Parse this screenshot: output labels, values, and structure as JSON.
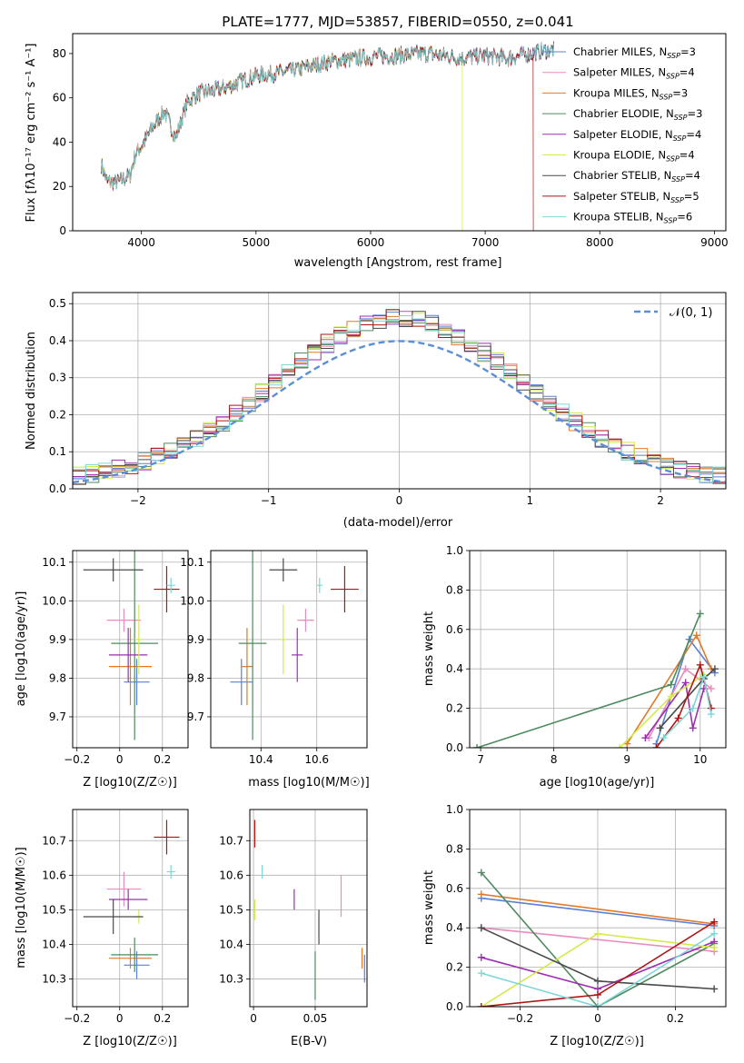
{
  "colors": {
    "chabrier_miles": "#5b7fd6",
    "salpeter_miles": "#e88bbd",
    "kroupa_miles": "#e07a2a",
    "chabrier_elodie": "#4e8a5f",
    "salpeter_elodie": "#9a2fb0",
    "kroupa_elodie": "#d6e84a",
    "chabrier_stelib": "#4a4a4a",
    "salpeter_stelib": "#b01515",
    "kroupa_stelib": "#7fd6d6"
  },
  "chart_data": [
    {
      "id": "spectrum",
      "type": "line",
      "title": "PLATE=1777, MJD=53857, FIBERID=0550, z=0.041",
      "xlabel": "wavelength [Angstrom, rest frame]",
      "ylabel": "Flux [fλ10⁻¹⁷ erg cm⁻² s⁻¹ A⁻¹]",
      "xlim": [
        3400,
        9100
      ],
      "ylim": [
        0,
        89
      ],
      "xticks": [
        4000,
        5000,
        6000,
        7000,
        8000,
        9000
      ],
      "yticks": [
        0,
        20,
        40,
        60,
        80
      ],
      "continuum": {
        "x": [
          3650,
          3700,
          3800,
          3900,
          3950,
          4000,
          4100,
          4200,
          4300,
          4400,
          4500,
          4700,
          5000,
          5300,
          5600,
          5900,
          6200,
          6500,
          6800,
          7000,
          7200,
          7400,
          7600
        ],
        "y": [
          30,
          22,
          22,
          25,
          35,
          38,
          47,
          54,
          42,
          58,
          62,
          64,
          70,
          72,
          76,
          78,
          79,
          80,
          78,
          79,
          78,
          80,
          82
        ]
      },
      "series": [
        {
          "name": "Chabrier MILES, N_SSP=3",
          "ssp": "3",
          "x_end": 7600
        },
        {
          "name": "Salpeter MILES, N_SSP=4",
          "ssp": "4",
          "x_end": 7600
        },
        {
          "name": "Kroupa MILES, N_SSP=3",
          "ssp": "3",
          "x_end": 7600
        },
        {
          "name": "Chabrier ELODIE, N_SSP=3",
          "ssp": "3",
          "x_end": 7600
        },
        {
          "name": "Salpeter ELODIE, N_SSP=4",
          "ssp": "4",
          "x_end": 7600
        },
        {
          "name": "Kroupa ELODIE, N_SSP=4",
          "ssp": "4",
          "x_end": 6800
        },
        {
          "name": "Chabrier STELIB, N_SSP=4",
          "ssp": "4",
          "x_end": 7600
        },
        {
          "name": "Salpeter STELIB, N_SSP=5",
          "ssp": "5",
          "x_end": 7420
        },
        {
          "name": "Kroupa STELIB, N_SSP=6",
          "ssp": "6",
          "x_end": 7600
        }
      ],
      "legend": "upper right"
    },
    {
      "id": "residuals",
      "type": "line",
      "xlabel": "(data-model)/error",
      "ylabel": "Normed distribution",
      "xlim": [
        -2.5,
        2.5
      ],
      "ylim": [
        0,
        0.53
      ],
      "xticks": [
        -2,
        -1,
        0,
        1,
        2
      ],
      "yticks": [
        0.0,
        0.1,
        0.2,
        0.3,
        0.4,
        0.5
      ],
      "gaussian_label": "𝒩(0, 1)",
      "legend": "upper right",
      "grid": true
    },
    {
      "id": "age_vs_Z",
      "type": "scatter",
      "xlabel": "Z [log10(Z/Z☉)]",
      "ylabel": "age [log10(age/yr)]",
      "xlim": [
        -0.22,
        0.32
      ],
      "ylim": [
        9.62,
        10.13
      ],
      "xticks": [
        -0.2,
        0.0,
        0.2
      ],
      "yticks": [
        9.7,
        9.8,
        9.9,
        10.0,
        10.1
      ],
      "points": [
        {
          "model": "chabrier_miles",
          "x": 0.08,
          "y": 9.79,
          "xerr": 0.06,
          "yerr": 0.06
        },
        {
          "model": "salpeter_miles",
          "x": 0.02,
          "y": 9.95,
          "xerr": 0.08,
          "yerr": 0.03
        },
        {
          "model": "kroupa_miles",
          "x": 0.05,
          "y": 9.83,
          "xerr": 0.1,
          "yerr": 0.1
        },
        {
          "model": "chabrier_elodie",
          "x": 0.07,
          "y": 9.89,
          "xerr": 0.11,
          "yerr": 0.25
        },
        {
          "model": "salpeter_elodie",
          "x": 0.04,
          "y": 9.86,
          "xerr": 0.09,
          "yerr": 0.07
        },
        {
          "model": "kroupa_elodie",
          "x": 0.09,
          "y": 9.9,
          "xerr": 0.02,
          "yerr": 0.09
        },
        {
          "model": "chabrier_stelib",
          "x": -0.03,
          "y": 10.08,
          "xerr": 0.14,
          "yerr": 0.03
        },
        {
          "model": "salpeter_stelib",
          "x": 0.22,
          "y": 10.03,
          "xerr": 0.06,
          "yerr": 0.06
        },
        {
          "model": "kroupa_stelib",
          "x": 0.24,
          "y": 10.04,
          "xerr": 0.02,
          "yerr": 0.02
        }
      ],
      "grid": true
    },
    {
      "id": "age_vs_mass",
      "type": "scatter",
      "xlabel": "mass [log10(M/M☉)]",
      "ylabel": "",
      "xlim": [
        10.22,
        10.78
      ],
      "ylim": [
        9.62,
        10.13
      ],
      "xticks": [
        10.4,
        10.6
      ],
      "yticks": [
        9.7,
        9.8,
        9.9,
        10.0,
        10.1
      ],
      "points": [
        {
          "model": "chabrier_miles",
          "x": 10.33,
          "y": 9.79,
          "xerr": 0.04,
          "yerr": 0.06
        },
        {
          "model": "salpeter_miles",
          "x": 10.56,
          "y": 9.95,
          "xerr": 0.03,
          "yerr": 0.03
        },
        {
          "model": "kroupa_miles",
          "x": 10.35,
          "y": 9.83,
          "xerr": 0.02,
          "yerr": 0.1
        },
        {
          "model": "chabrier_elodie",
          "x": 10.37,
          "y": 9.89,
          "xerr": 0.05,
          "yerr": 0.25
        },
        {
          "model": "salpeter_elodie",
          "x": 10.53,
          "y": 9.86,
          "xerr": 0.02,
          "yerr": 0.07
        },
        {
          "model": "kroupa_elodie",
          "x": 10.48,
          "y": 9.9,
          "xerr": 0.01,
          "yerr": 0.09
        },
        {
          "model": "chabrier_stelib",
          "x": 10.48,
          "y": 10.08,
          "xerr": 0.05,
          "yerr": 0.03
        },
        {
          "model": "salpeter_stelib",
          "x": 10.7,
          "y": 10.03,
          "xerr": 0.05,
          "yerr": 0.06
        },
        {
          "model": "kroupa_stelib",
          "x": 10.61,
          "y": 10.04,
          "xerr": 0.01,
          "yerr": 0.02
        }
      ],
      "grid": true
    },
    {
      "id": "massweight_vs_age",
      "type": "line",
      "xlabel": "age [log10(age/yr)]",
      "ylabel": "mass weight",
      "xlim": [
        6.85,
        10.35
      ],
      "ylim": [
        0,
        1.0
      ],
      "xticks": [
        7,
        8,
        9,
        10
      ],
      "yticks": [
        0.0,
        0.2,
        0.4,
        0.6,
        0.8,
        1.0
      ],
      "series": [
        {
          "model": "chabrier_miles",
          "x": [
            9.4,
            9.85,
            10.2
          ],
          "y": [
            0.02,
            0.55,
            0.38
          ]
        },
        {
          "model": "salpeter_miles",
          "x": [
            9.3,
            9.8,
            10.15
          ],
          "y": [
            0.05,
            0.4,
            0.3
          ]
        },
        {
          "model": "kroupa_miles",
          "x": [
            9.0,
            9.95,
            10.15
          ],
          "y": [
            0.02,
            0.57,
            0.4
          ]
        },
        {
          "model": "chabrier_elodie",
          "x": [
            6.95,
            9.6,
            10.0
          ],
          "y": [
            0.0,
            0.32,
            0.68
          ]
        },
        {
          "model": "salpeter_elodie",
          "x": [
            9.25,
            9.8,
            9.9,
            10.05
          ],
          "y": [
            0.05,
            0.33,
            0.1,
            0.3
          ]
        },
        {
          "model": "kroupa_elodie",
          "x": [
            8.9,
            9.6,
            10.05
          ],
          "y": [
            0.0,
            0.26,
            0.37
          ]
        },
        {
          "model": "chabrier_stelib",
          "x": [
            9.45,
            10.05,
            10.2
          ],
          "y": [
            0.1,
            0.35,
            0.4
          ]
        },
        {
          "model": "salpeter_stelib",
          "x": [
            9.4,
            9.7,
            10.0,
            10.15
          ],
          "y": [
            0.0,
            0.15,
            0.42,
            0.2
          ]
        },
        {
          "model": "kroupa_stelib",
          "x": [
            9.5,
            9.9,
            10.05,
            10.15
          ],
          "y": [
            0.05,
            0.2,
            0.36,
            0.17
          ]
        }
      ],
      "grid": true
    },
    {
      "id": "mass_vs_Z",
      "type": "scatter",
      "xlabel": "Z [log10(Z/Z☉)]",
      "ylabel": "mass [log10(M/M☉)]",
      "xlim": [
        -0.22,
        0.32
      ],
      "ylim": [
        10.22,
        10.79
      ],
      "xticks": [
        -0.2,
        0.0,
        0.2
      ],
      "yticks": [
        10.3,
        10.4,
        10.5,
        10.6,
        10.7
      ],
      "points": [
        {
          "model": "chabrier_miles",
          "x": 0.08,
          "y": 10.34,
          "xerr": 0.06,
          "yerr": 0.04
        },
        {
          "model": "salpeter_miles",
          "x": 0.02,
          "y": 10.56,
          "xerr": 0.08,
          "yerr": 0.05
        },
        {
          "model": "kroupa_miles",
          "x": 0.05,
          "y": 10.36,
          "xerr": 0.1,
          "yerr": 0.03
        },
        {
          "model": "chabrier_elodie",
          "x": 0.07,
          "y": 10.37,
          "xerr": 0.11,
          "yerr": 0.05
        },
        {
          "model": "salpeter_elodie",
          "x": 0.04,
          "y": 10.53,
          "xerr": 0.09,
          "yerr": 0.03
        },
        {
          "model": "kroupa_elodie",
          "x": 0.09,
          "y": 10.48,
          "xerr": 0.02,
          "yerr": 0.02
        },
        {
          "model": "chabrier_stelib",
          "x": -0.03,
          "y": 10.48,
          "xerr": 0.14,
          "yerr": 0.05
        },
        {
          "model": "salpeter_stelib",
          "x": 0.22,
          "y": 10.71,
          "xerr": 0.06,
          "yerr": 0.05
        },
        {
          "model": "kroupa_stelib",
          "x": 0.24,
          "y": 10.61,
          "xerr": 0.02,
          "yerr": 0.02
        }
      ],
      "grid": true
    },
    {
      "id": "mass_vs_ebv",
      "type": "scatter",
      "xlabel": "E(B-V)",
      "ylabel": "",
      "xlim": [
        -0.003,
        0.092
      ],
      "ylim": [
        10.22,
        10.79
      ],
      "xticks": [
        0.0,
        0.05
      ],
      "yticks": [
        10.3,
        10.4,
        10.5,
        10.6,
        10.7
      ],
      "points": [
        {
          "model": "chabrier_miles",
          "x": 0.09,
          "y": 10.33,
          "xerr": 0.0,
          "yerr": 0.04
        },
        {
          "model": "salpeter_miles",
          "x": 0.071,
          "y": 10.54,
          "xerr": 0.0,
          "yerr": 0.06
        },
        {
          "model": "kroupa_miles",
          "x": 0.088,
          "y": 10.36,
          "xerr": 0.0,
          "yerr": 0.03
        },
        {
          "model": "chabrier_elodie",
          "x": 0.05,
          "y": 10.31,
          "xerr": 0.0,
          "yerr": 0.07
        },
        {
          "model": "salpeter_elodie",
          "x": 0.033,
          "y": 10.53,
          "xerr": 0.0,
          "yerr": 0.03
        },
        {
          "model": "kroupa_elodie",
          "x": 0.001,
          "y": 10.5,
          "xerr": 0.0,
          "yerr": 0.03
        },
        {
          "model": "chabrier_stelib",
          "x": 0.053,
          "y": 10.45,
          "xerr": 0.0,
          "yerr": 0.05
        },
        {
          "model": "salpeter_stelib",
          "x": 0.001,
          "y": 10.72,
          "xerr": 0.0,
          "yerr": 0.04
        },
        {
          "model": "kroupa_stelib",
          "x": 0.007,
          "y": 10.61,
          "xerr": 0.0,
          "yerr": 0.02
        }
      ],
      "grid": true
    },
    {
      "id": "massweight_vs_Z",
      "type": "line",
      "xlabel": "Z [log10(Z/Z☉)]",
      "ylabel": "mass weight",
      "xlim": [
        -0.33,
        0.33
      ],
      "ylim": [
        0,
        1.0
      ],
      "xticks": [
        -0.2,
        0.0,
        0.2
      ],
      "yticks": [
        0.0,
        0.2,
        0.4,
        0.6,
        0.8,
        1.0
      ],
      "series": [
        {
          "model": "chabrier_miles",
          "x": [
            -0.3,
            0.3
          ],
          "y": [
            0.55,
            0.41
          ]
        },
        {
          "model": "salpeter_miles",
          "x": [
            -0.3,
            0.3
          ],
          "y": [
            0.4,
            0.28
          ]
        },
        {
          "model": "kroupa_miles",
          "x": [
            -0.3,
            0.3
          ],
          "y": [
            0.57,
            0.42
          ]
        },
        {
          "model": "chabrier_elodie",
          "x": [
            -0.3,
            0.0,
            0.3
          ],
          "y": [
            0.68,
            0.0,
            0.32
          ]
        },
        {
          "model": "salpeter_elodie",
          "x": [
            -0.3,
            0.0,
            0.3
          ],
          "y": [
            0.25,
            0.09,
            0.33
          ]
        },
        {
          "model": "kroupa_elodie",
          "x": [
            -0.3,
            0.0,
            0.3
          ],
          "y": [
            0.0,
            0.37,
            0.3
          ]
        },
        {
          "model": "chabrier_stelib",
          "x": [
            -0.3,
            0.0,
            0.3
          ],
          "y": [
            0.4,
            0.13,
            0.09
          ]
        },
        {
          "model": "salpeter_stelib",
          "x": [
            -0.3,
            0.0,
            0.3
          ],
          "y": [
            0.0,
            0.06,
            0.43
          ]
        },
        {
          "model": "kroupa_stelib",
          "x": [
            -0.3,
            0.0,
            0.3
          ],
          "y": [
            0.17,
            0.0,
            0.37
          ]
        }
      ],
      "grid": true
    }
  ]
}
